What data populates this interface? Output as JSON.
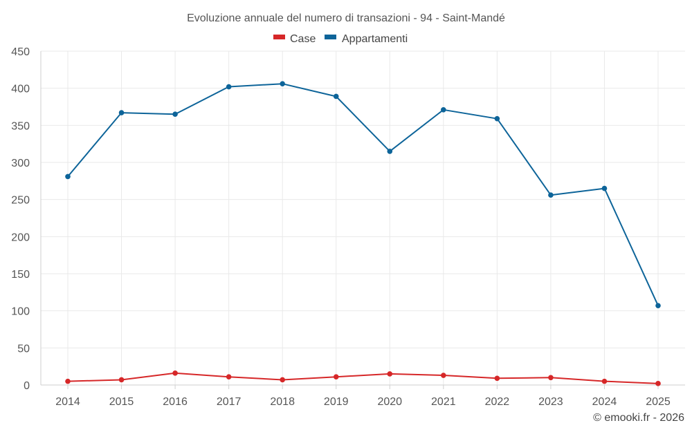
{
  "chart_data": {
    "type": "line",
    "title": "Evoluzione annuale del numero di transazioni - 94 - Saint-Mandé",
    "xlabel": "",
    "ylabel": "",
    "ylim": [
      0,
      450
    ],
    "yticks": [
      "0",
      "50",
      "100",
      "150",
      "200",
      "250",
      "300",
      "350",
      "400",
      "450"
    ],
    "categories": [
      "2014",
      "2015",
      "2016",
      "2017",
      "2018",
      "2019",
      "2020",
      "2021",
      "2022",
      "2023",
      "2024",
      "2025"
    ],
    "series": [
      {
        "name": "Case",
        "color": "#d62728",
        "values": [
          5,
          7,
          16,
          11,
          7,
          11,
          15,
          13,
          9,
          10,
          5,
          2
        ]
      },
      {
        "name": "Appartamenti",
        "color": "#0d6499",
        "values": [
          281,
          367,
          365,
          402,
          406,
          389,
          315,
          371,
          359,
          256,
          265,
          107
        ]
      }
    ],
    "legend_position": "top-center",
    "grid": true
  },
  "credit": "© emooki.fr - 2026"
}
